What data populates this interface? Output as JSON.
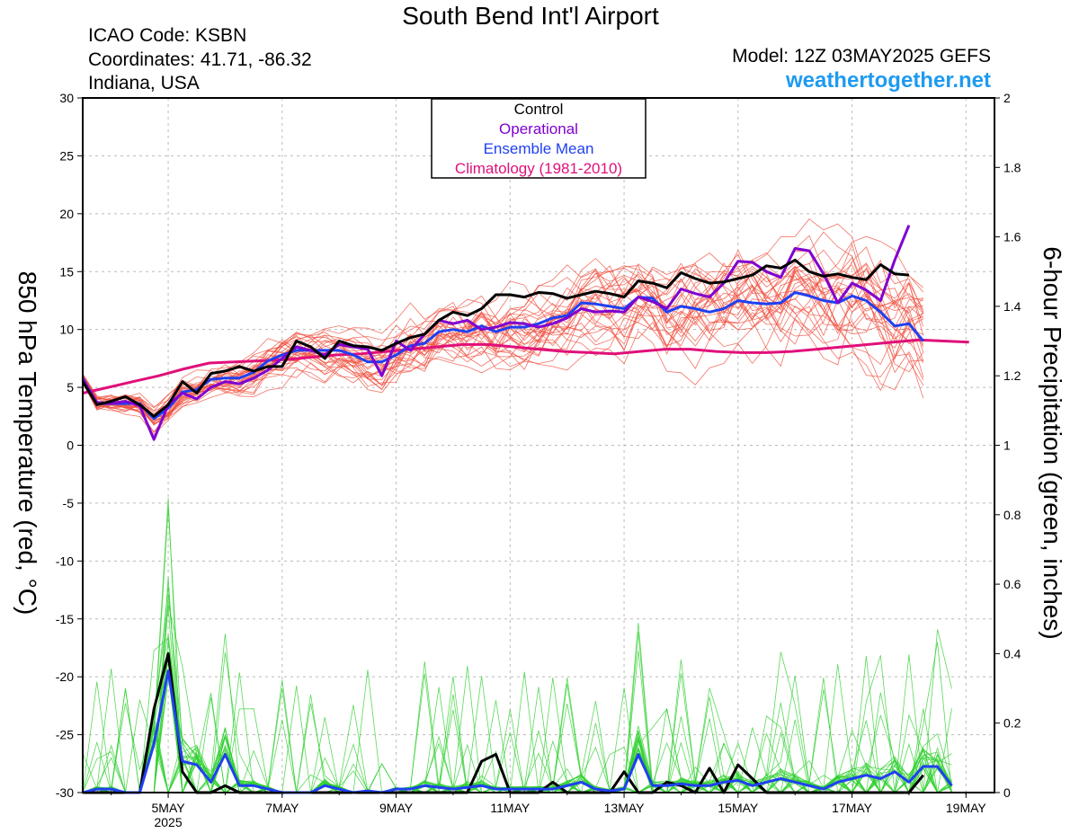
{
  "header": {
    "title": "South Bend Int'l Airport",
    "icao": "ICAO Code: KSBN",
    "coordinates": "Coordinates: 41.71, -86.32",
    "location": "Indiana, USA",
    "model": "Model: 12Z 03MAY2025 GEFS",
    "site": "weathertogether.net"
  },
  "chart_data": {
    "type": "line",
    "title": "South Bend Int'l Airport",
    "ylabel": "850 hPa Temperature (red, °C)",
    "y2label": "6-hour Precipitation (green, inches)",
    "ylim": [
      -30,
      30
    ],
    "y2lim": [
      0,
      2
    ],
    "yticks": [
      "30",
      "25",
      "20",
      "15",
      "10",
      "5",
      "0",
      "-5",
      "-10",
      "-15",
      "-20",
      "-25",
      "-30"
    ],
    "y2ticks": [
      "2",
      "1.8",
      "1.6",
      "1.4",
      "1.2",
      "1",
      "0.8",
      "0.6",
      "0.4",
      "0.2",
      "0"
    ],
    "xlim_days": [
      3.5,
      19.5
    ],
    "xticks": [
      {
        "day": 5,
        "label": "5MAY",
        "sublabel": "2025"
      },
      {
        "day": 7,
        "label": "7MAY"
      },
      {
        "day": 9,
        "label": "9MAY"
      },
      {
        "day": 11,
        "label": "11MAY"
      },
      {
        "day": 13,
        "label": "13MAY"
      },
      {
        "day": 15,
        "label": "15MAY"
      },
      {
        "day": 17,
        "label": "17MAY"
      },
      {
        "day": 19,
        "label": "19MAY"
      }
    ],
    "grid": true,
    "legend": {
      "position": "top-center",
      "entries": [
        {
          "label": "Control",
          "color": "#000000"
        },
        {
          "label": "Operational",
          "color": "#8000d0"
        },
        {
          "label": "Ensemble Mean",
          "color": "#2040f0"
        },
        {
          "label": "Climatology (1981-2010)",
          "color": "#e0107a"
        }
      ]
    },
    "colors": {
      "member_temp": "#f05040",
      "member_precip": "#30d030",
      "control": "#000000",
      "operational": "#8000d0",
      "mean": "#2040f0",
      "climatology": "#e0107a"
    },
    "x_start_day": 3.5,
    "x_step_days": 0.25,
    "temperature_series": [
      {
        "name": "Control",
        "values": [
          5.5,
          3.5,
          3.8,
          4.2,
          3.5,
          2.5,
          3.5,
          5.5,
          4.5,
          6.2,
          6.4,
          6.8,
          6.4,
          6.8,
          6.8,
          9.0,
          8.5,
          7.5,
          9.0,
          8.6,
          8.5,
          8.2,
          8.8,
          9.3,
          9.6,
          10.8,
          11.5,
          11.2,
          11.8,
          13.0,
          13.0,
          12.8,
          13.2,
          13.1,
          12.7,
          13.0,
          13.3,
          13.1,
          12.8,
          14.2,
          14.0,
          13.6,
          14.9,
          14.4,
          14.0,
          14.1,
          14.4,
          14.7,
          15.5,
          15.3,
          16.0,
          15.0,
          14.6,
          14.8,
          14.5,
          14.3,
          15.6,
          14.8,
          14.7
        ]
      },
      {
        "name": "Operational",
        "values": [
          5.7,
          3.7,
          3.6,
          3.8,
          3.4,
          0.5,
          3.5,
          4.5,
          4.0,
          5.0,
          5.5,
          5.3,
          5.8,
          6.5,
          7.5,
          8.5,
          8.2,
          7.8,
          8.7,
          8.5,
          8.3,
          6.0,
          9.0,
          8.2,
          9.6,
          10.8,
          10.5,
          10.8,
          10.0,
          10.2,
          10.6,
          10.5,
          10.2,
          10.5,
          11.0,
          11.8,
          11.5,
          11.6,
          11.5,
          12.8,
          12.4,
          11.8,
          13.5,
          13.1,
          12.8,
          14.0,
          15.9,
          15.8,
          15.0,
          14.5,
          17.0,
          16.8,
          14.8,
          12.3,
          14.0,
          13.4,
          12.5,
          16.0,
          19.0
        ]
      },
      {
        "name": "Ensemble Mean",
        "values": [
          5.8,
          3.6,
          3.6,
          3.6,
          3.6,
          2.3,
          3.2,
          4.6,
          4.8,
          5.7,
          5.8,
          5.8,
          6.3,
          7.3,
          7.8,
          8.2,
          8.2,
          8.2,
          8.2,
          7.8,
          7.2,
          7.2,
          7.8,
          8.6,
          8.8,
          9.8,
          10.0,
          9.8,
          10.3,
          9.8,
          10.2,
          10.2,
          10.5,
          11.0,
          11.2,
          12.3,
          12.2,
          12.0,
          11.8,
          12.8,
          12.7,
          11.5,
          12.0,
          11.8,
          11.5,
          11.8,
          12.5,
          12.3,
          12.2,
          12.3,
          13.2,
          12.9,
          12.5,
          12.3,
          12.9,
          12.5,
          11.5,
          10.3,
          10.5,
          9.0
        ]
      },
      {
        "name": "Climatology (1981-2010)",
        "values": [
          4.5,
          5.0,
          5.5,
          6.0,
          6.6,
          7.1,
          7.2,
          7.3,
          7.4,
          7.6,
          7.8,
          7.9,
          8.1,
          8.3,
          8.5,
          8.7,
          8.7,
          8.5,
          8.3,
          8.1,
          8.0,
          7.9,
          8.1,
          8.3,
          8.3,
          8.1,
          8.0,
          8.0,
          8.1,
          8.3,
          8.5,
          8.7,
          8.9,
          9.1,
          9.0,
          8.9
        ]
      }
    ],
    "climatology_x_step_days": 0.4444,
    "precip_series": [
      {
        "name": "Control",
        "values": [
          0,
          0,
          0,
          0,
          0,
          0.24,
          0.4,
          0.06,
          0,
          0,
          0.02,
          0,
          0,
          0,
          0,
          0,
          0,
          0,
          0,
          0,
          0,
          0,
          0,
          0,
          0,
          0,
          0,
          0,
          0.09,
          0.11,
          0,
          0,
          0,
          0.03,
          0,
          0,
          0,
          0,
          0.06,
          0,
          0,
          0.03,
          0.02,
          0,
          0.07,
          0,
          0.08,
          0.04,
          0,
          0,
          0,
          0,
          0,
          0,
          0,
          0,
          0,
          0,
          0,
          0.05
        ]
      },
      {
        "name": "Ensemble Mean",
        "values": [
          0,
          0.01,
          0.01,
          0,
          0,
          0.14,
          0.35,
          0.09,
          0.08,
          0.03,
          0.11,
          0.02,
          0.02,
          0.01,
          0,
          0,
          0,
          0.02,
          0.01,
          0,
          0.005,
          0,
          0.01,
          0.01,
          0.02,
          0.015,
          0.01,
          0.015,
          0.02,
          0.01,
          0.01,
          0.01,
          0.01,
          0.01,
          0.02,
          0.03,
          0.01,
          0.005,
          0.01,
          0.11,
          0.02,
          0.02,
          0.025,
          0.02,
          0.02,
          0.03,
          0.035,
          0.02,
          0.03,
          0.04,
          0.03,
          0.02,
          0.01,
          0.03,
          0.04,
          0.05,
          0.04,
          0.06,
          0.03,
          0.075,
          0.075,
          0.02
        ]
      }
    ]
  }
}
